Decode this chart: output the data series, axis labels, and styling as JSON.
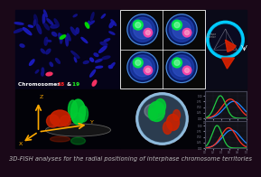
{
  "background_color": "#1a0818",
  "title_text": "3D-FISH analyses for the radial positioning of interphase chromosome territories",
  "title_color": "#bbbbbb",
  "title_fontsize": 4.8,
  "chr18_color": "#ff2222",
  "chr19_color": "#22ff22",
  "chr_label_color": "#ffffff",
  "panel1_bg": "#050318",
  "panel2_bg": "#080808",
  "panel3_bg": "#0a0a18",
  "panel4_bg": "#020208",
  "panel5_bg": "#030308",
  "panel6_bg": "#0a0a14",
  "axes_color": "#ffaa00",
  "blue_curve_color": "#2288ff",
  "red_curve_color": "#ff3322",
  "green_curve_color": "#22cc44"
}
